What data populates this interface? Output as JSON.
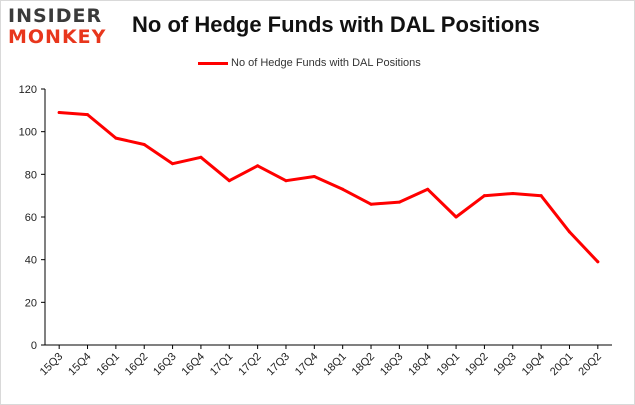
{
  "logo": {
    "line1": "INSIDER",
    "line2": "MONKEY"
  },
  "colors": {
    "series": "#ff0000",
    "axis": "#000000",
    "logo_accent": "#e8361c"
  },
  "chart_data": {
    "type": "line",
    "title": "No of Hedge Funds with DAL Positions",
    "xlabel": "",
    "ylabel": "",
    "categories": [
      "15Q3",
      "15Q4",
      "16Q1",
      "16Q2",
      "16Q3",
      "16Q4",
      "17Q1",
      "17Q2",
      "17Q3",
      "17Q4",
      "18Q1",
      "18Q2",
      "18Q3",
      "18Q4",
      "19Q1",
      "19Q2",
      "19Q3",
      "19Q4",
      "20Q1",
      "20Q2"
    ],
    "series": [
      {
        "name": "No of Hedge Funds with DAL Positions",
        "values": [
          109,
          108,
          97,
          94,
          85,
          88,
          77,
          84,
          77,
          79,
          73,
          66,
          67,
          73,
          60,
          70,
          71,
          70,
          53,
          39
        ]
      }
    ],
    "ylim": [
      0,
      120
    ],
    "yticks": [
      0,
      20,
      40,
      60,
      80,
      100,
      120
    ],
    "grid": false,
    "legend": "top-center"
  }
}
